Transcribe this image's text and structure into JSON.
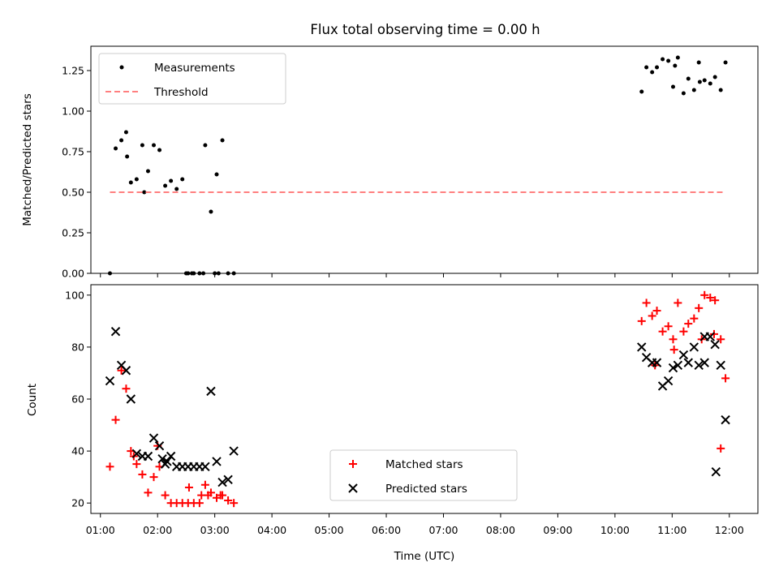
{
  "chart_data": [
    {
      "type": "scatter",
      "title": "Flux total observing time = 0.00 h",
      "ylabel": "Matched/Predicted stars",
      "xlabel": "",
      "xlim": [
        "00:50",
        "12:30"
      ],
      "ylim": [
        0,
        1.4
      ],
      "x_ticks": [
        "01:00",
        "02:00",
        "03:00",
        "04:00",
        "05:00",
        "06:00",
        "07:00",
        "08:00",
        "09:00",
        "10:00",
        "11:00",
        "12:00"
      ],
      "y_ticks": [
        "0.00",
        "0.25",
        "0.50",
        "0.75",
        "1.00",
        "1.25"
      ],
      "legend_position": "top-left",
      "series": [
        {
          "name": "Measurements",
          "marker": "dot",
          "color": "#000000",
          "x": [
            "01:10",
            "01:16",
            "01:22",
            "01:27",
            "01:32",
            "01:38",
            "01:44",
            "01:50",
            "01:56",
            "02:02",
            "02:08",
            "02:14",
            "02:20",
            "02:26",
            "02:32",
            "02:38",
            "02:44",
            "02:50",
            "02:56",
            "03:02",
            "03:08",
            "03:14",
            "03:20",
            "01:28",
            "01:46",
            "02:30",
            "02:36",
            "02:48",
            "03:00",
            "03:04",
            "10:28",
            "10:33",
            "10:39",
            "10:44",
            "10:50",
            "10:56",
            "11:01",
            "11:06",
            "11:12",
            "11:17",
            "11:23",
            "11:28",
            "11:34",
            "11:40",
            "11:45",
            "11:51",
            "11:56",
            "11:03",
            "11:29"
          ],
          "y": [
            0.0,
            0.77,
            0.82,
            0.87,
            0.56,
            0.58,
            0.79,
            0.63,
            0.79,
            0.76,
            0.54,
            0.57,
            0.52,
            0.58,
            0.0,
            0.0,
            0.0,
            0.79,
            0.38,
            0.61,
            0.82,
            0.0,
            0.0,
            0.72,
            0.5,
            0.0,
            0.0,
            0.0,
            0.0,
            0.0,
            1.12,
            1.27,
            1.24,
            1.27,
            1.32,
            1.31,
            1.15,
            1.33,
            1.11,
            1.2,
            1.13,
            1.3,
            1.19,
            1.17,
            1.21,
            1.13,
            1.3,
            1.28,
            1.18
          ]
        },
        {
          "name": "Threshold",
          "style": "dashed",
          "color": "#ff7f7f",
          "x": [
            "01:10",
            "11:56"
          ],
          "y": [
            0.5,
            0.5
          ]
        }
      ]
    },
    {
      "type": "scatter",
      "title": "",
      "xlabel": "Time (UTC)",
      "ylabel": "Count",
      "xlim": [
        "00:50",
        "12:30"
      ],
      "ylim": [
        16,
        104
      ],
      "x_ticks": [
        "01:00",
        "02:00",
        "03:00",
        "04:00",
        "05:00",
        "06:00",
        "07:00",
        "08:00",
        "09:00",
        "10:00",
        "11:00",
        "12:00"
      ],
      "y_ticks": [
        "20",
        "40",
        "60",
        "80",
        "100"
      ],
      "legend_position": "lower-center",
      "series": [
        {
          "name": "Matched stars",
          "marker": "plus",
          "color": "#ff0000",
          "x": [
            "01:10",
            "01:16",
            "01:22",
            "01:27",
            "01:32",
            "01:38",
            "01:44",
            "01:50",
            "01:56",
            "02:02",
            "02:08",
            "02:14",
            "02:20",
            "02:26",
            "02:32",
            "02:38",
            "02:44",
            "02:50",
            "02:56",
            "03:02",
            "03:08",
            "03:14",
            "03:20",
            "01:35",
            "02:00",
            "02:33",
            "02:46",
            "02:53",
            "03:06",
            "10:28",
            "10:33",
            "10:39",
            "10:44",
            "10:50",
            "10:56",
            "11:01",
            "11:06",
            "11:12",
            "11:17",
            "11:23",
            "11:28",
            "11:34",
            "11:40",
            "11:45",
            "11:51",
            "11:56",
            "10:42",
            "11:02",
            "11:31",
            "11:44",
            "11:51"
          ],
          "y": [
            34,
            52,
            71,
            64,
            40,
            35,
            31,
            24,
            30,
            34,
            23,
            20,
            20,
            20,
            20,
            20,
            20,
            27,
            24,
            22,
            23,
            21,
            20,
            38,
            42,
            26,
            23,
            23,
            23,
            90,
            97,
            92,
            94,
            86,
            88,
            83,
            97,
            86,
            89,
            91,
            95,
            100,
            99,
            98,
            83,
            68,
            73,
            79,
            83,
            85,
            41
          ],
          "x_order_note": ""
        },
        {
          "name": "Predicted stars",
          "marker": "x",
          "color": "#000000",
          "x": [
            "01:10",
            "01:16",
            "01:22",
            "01:27",
            "01:32",
            "01:38",
            "01:44",
            "01:50",
            "01:56",
            "02:02",
            "02:08",
            "02:14",
            "02:20",
            "02:26",
            "02:32",
            "02:38",
            "02:44",
            "02:50",
            "02:56",
            "03:02",
            "03:08",
            "03:14",
            "03:20",
            "02:05",
            "02:10",
            "10:28",
            "10:33",
            "10:39",
            "10:44",
            "10:50",
            "10:56",
            "11:01",
            "11:06",
            "11:12",
            "11:17",
            "11:23",
            "11:28",
            "11:34",
            "11:40",
            "11:45",
            "11:51",
            "11:56",
            "11:46",
            "11:34"
          ],
          "y": [
            67,
            86,
            73,
            71,
            60,
            39,
            38,
            38,
            45,
            42,
            35,
            38,
            34,
            34,
            34,
            34,
            34,
            34,
            63,
            36,
            28,
            29,
            40,
            37,
            36,
            80,
            76,
            74,
            74,
            65,
            67,
            72,
            73,
            77,
            74,
            80,
            73,
            84,
            84,
            81,
            73,
            52,
            32,
            74
          ]
        }
      ]
    }
  ]
}
